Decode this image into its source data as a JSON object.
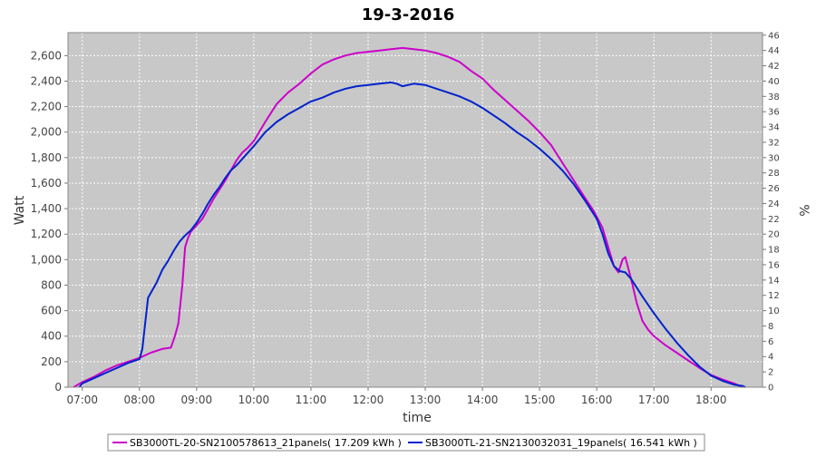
{
  "chart_data": {
    "type": "line",
    "title": "19-3-2016",
    "xlabel": "time",
    "ylabel": "Watt",
    "y2label": "%",
    "xlim": [
      6.75,
      18.9
    ],
    "ylim": [
      0,
      2780
    ],
    "y2lim": [
      0,
      46.33
    ],
    "x_ticks": [
      {
        "value": 7,
        "label": "07:00"
      },
      {
        "value": 8,
        "label": "08:00"
      },
      {
        "value": 9,
        "label": "09:00"
      },
      {
        "value": 10,
        "label": "10:00"
      },
      {
        "value": 11,
        "label": "11:00"
      },
      {
        "value": 12,
        "label": "12:00"
      },
      {
        "value": 13,
        "label": "13:00"
      },
      {
        "value": 14,
        "label": "14:00"
      },
      {
        "value": 15,
        "label": "15:00"
      },
      {
        "value": 16,
        "label": "16:00"
      },
      {
        "value": 17,
        "label": "17:00"
      },
      {
        "value": 18,
        "label": "18:00"
      }
    ],
    "y_ticks": [
      {
        "value": 0,
        "label": "0"
      },
      {
        "value": 200,
        "label": "200"
      },
      {
        "value": 400,
        "label": "400"
      },
      {
        "value": 600,
        "label": "600"
      },
      {
        "value": 800,
        "label": "800"
      },
      {
        "value": 1000,
        "label": "1,000"
      },
      {
        "value": 1200,
        "label": "1,200"
      },
      {
        "value": 1400,
        "label": "1,400"
      },
      {
        "value": 1600,
        "label": "1,600"
      },
      {
        "value": 1800,
        "label": "1,800"
      },
      {
        "value": 2000,
        "label": "2,000"
      },
      {
        "value": 2200,
        "label": "2,200"
      },
      {
        "value": 2400,
        "label": "2,400"
      },
      {
        "value": 2600,
        "label": "2,600"
      }
    ],
    "y2_ticks": [
      0,
      2,
      4,
      6,
      8,
      10,
      12,
      14,
      16,
      18,
      20,
      22,
      24,
      26,
      28,
      30,
      32,
      34,
      36,
      38,
      40,
      42,
      44,
      46
    ],
    "grid": true,
    "legend_position": "bottom",
    "series": [
      {
        "name": "SB3000TL-20-SN2100578613_21panels( 17.209 kWh )",
        "color": "#cc00cc",
        "x": [
          6.85,
          7.0,
          7.2,
          7.4,
          7.6,
          7.8,
          8.0,
          8.2,
          8.4,
          8.55,
          8.62,
          8.68,
          8.75,
          8.8,
          8.85,
          8.9,
          9.0,
          9.1,
          9.2,
          9.3,
          9.4,
          9.5,
          9.6,
          9.7,
          9.8,
          9.9,
          10.0,
          10.2,
          10.4,
          10.6,
          10.8,
          11.0,
          11.2,
          11.4,
          11.6,
          11.8,
          12.0,
          12.2,
          12.4,
          12.6,
          12.8,
          13.0,
          13.2,
          13.4,
          13.6,
          13.8,
          14.0,
          14.2,
          14.4,
          14.6,
          14.8,
          15.0,
          15.2,
          15.4,
          15.6,
          15.8,
          15.95,
          16.1,
          16.2,
          16.3,
          16.38,
          16.45,
          16.5,
          16.6,
          16.7,
          16.8,
          16.9,
          17.0,
          17.2,
          17.4,
          17.6,
          17.8,
          18.0,
          18.2,
          18.4,
          18.55
        ],
        "y": [
          0,
          40,
          80,
          130,
          170,
          200,
          230,
          270,
          300,
          310,
          400,
          500,
          800,
          1100,
          1170,
          1220,
          1270,
          1320,
          1400,
          1480,
          1550,
          1620,
          1700,
          1780,
          1840,
          1880,
          1930,
          2080,
          2220,
          2310,
          2380,
          2460,
          2530,
          2570,
          2600,
          2620,
          2630,
          2640,
          2650,
          2660,
          2650,
          2640,
          2620,
          2590,
          2550,
          2480,
          2420,
          2330,
          2250,
          2170,
          2090,
          2000,
          1900,
          1760,
          1620,
          1480,
          1380,
          1250,
          1100,
          950,
          900,
          1000,
          1020,
          850,
          660,
          520,
          450,
          400,
          330,
          270,
          210,
          150,
          95,
          60,
          30,
          0
        ]
      },
      {
        "name": "SB3000TL-21-SN2130032031_19panels( 16.541 kWh )",
        "color": "#0022cc",
        "x": [
          6.95,
          7.0,
          7.2,
          7.4,
          7.6,
          7.8,
          8.0,
          8.05,
          8.1,
          8.15,
          8.2,
          8.3,
          8.4,
          8.5,
          8.6,
          8.7,
          8.8,
          8.9,
          9.0,
          9.1,
          9.2,
          9.3,
          9.4,
          9.5,
          9.6,
          9.7,
          9.8,
          9.9,
          10.0,
          10.2,
          10.4,
          10.6,
          10.8,
          11.0,
          11.2,
          11.4,
          11.6,
          11.8,
          12.0,
          12.2,
          12.4,
          12.5,
          12.6,
          12.8,
          13.0,
          13.2,
          13.4,
          13.6,
          13.8,
          14.0,
          14.2,
          14.4,
          14.6,
          14.8,
          15.0,
          15.2,
          15.4,
          15.6,
          15.8,
          16.0,
          16.1,
          16.2,
          16.3,
          16.4,
          16.5,
          16.6,
          16.8,
          17.0,
          17.2,
          17.4,
          17.6,
          17.8,
          18.0,
          18.2,
          18.4,
          18.55,
          18.6
        ],
        "y": [
          0,
          30,
          70,
          110,
          150,
          190,
          220,
          300,
          500,
          700,
          740,
          820,
          920,
          990,
          1070,
          1140,
          1190,
          1230,
          1290,
          1360,
          1440,
          1510,
          1570,
          1640,
          1700,
          1740,
          1790,
          1840,
          1890,
          2000,
          2080,
          2140,
          2190,
          2240,
          2270,
          2310,
          2340,
          2360,
          2370,
          2380,
          2390,
          2380,
          2360,
          2380,
          2370,
          2340,
          2310,
          2280,
          2240,
          2190,
          2130,
          2070,
          2000,
          1940,
          1870,
          1790,
          1700,
          1590,
          1460,
          1320,
          1200,
          1050,
          950,
          910,
          900,
          850,
          710,
          580,
          460,
          350,
          250,
          160,
          90,
          50,
          20,
          10,
          0
        ]
      }
    ]
  }
}
